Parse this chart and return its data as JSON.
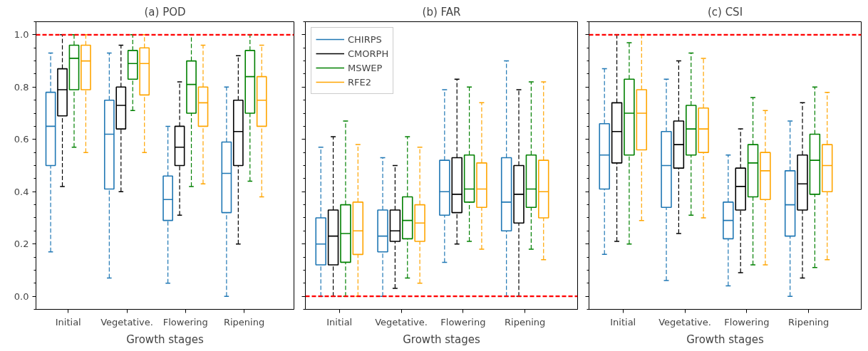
{
  "chart_data": [
    {
      "type": "box",
      "title": "(a) POD",
      "xlabel": "Growth stages",
      "categories": [
        "Initial",
        "Vegetative.",
        "Flowering",
        "Ripening"
      ],
      "ylim": [
        -0.05,
        1.05
      ],
      "yticks": [
        {
          "value": 0,
          "label": "0.0"
        },
        {
          "value": 0.2,
          "label": "0.2"
        },
        {
          "value": 0.4,
          "label": "0.4"
        },
        {
          "value": 0.6,
          "label": "0.6"
        },
        {
          "value": 0.8,
          "label": "0.8"
        },
        {
          "value": 1,
          "label": "1.0"
        }
      ],
      "grid": false,
      "line_style": "dashed",
      "ref_lines": [
        {
          "axis": "y",
          "value": 1,
          "color": "#ff0000",
          "line_style": "dashed"
        }
      ],
      "series": [
        {
          "color": "#1f77b4",
          "boxes": [
            {
              "low": 0.17,
              "q1": 0.5,
              "median": 0.65,
              "q3": 0.78,
              "high": 0.93
            },
            {
              "low": 0.07,
              "q1": 0.41,
              "median": 0.62,
              "q3": 0.75,
              "high": 0.93
            },
            {
              "low": 0.05,
              "q1": 0.29,
              "median": 0.37,
              "q3": 0.46,
              "high": 0.65
            },
            {
              "low": 0.0,
              "q1": 0.32,
              "median": 0.47,
              "q3": 0.59,
              "high": 0.8
            }
          ]
        },
        {
          "color": "#000000",
          "boxes": [
            {
              "low": 0.42,
              "q1": 0.69,
              "median": 0.79,
              "q3": 0.87,
              "high": 1.0
            },
            {
              "low": 0.4,
              "q1": 0.64,
              "median": 0.73,
              "q3": 0.8,
              "high": 0.96
            },
            {
              "low": 0.31,
              "q1": 0.5,
              "median": 0.57,
              "q3": 0.65,
              "high": 0.82
            },
            {
              "low": 0.2,
              "q1": 0.5,
              "median": 0.63,
              "q3": 0.75,
              "high": 0.92
            }
          ]
        },
        {
          "color": "#008000",
          "boxes": [
            {
              "low": 0.57,
              "q1": 0.79,
              "median": 0.91,
              "q3": 0.96,
              "high": 1.0
            },
            {
              "low": 0.71,
              "q1": 0.83,
              "median": 0.89,
              "q3": 0.94,
              "high": 1.0
            },
            {
              "low": 0.42,
              "q1": 0.7,
              "median": 0.81,
              "q3": 0.9,
              "high": 1.0
            },
            {
              "low": 0.44,
              "q1": 0.7,
              "median": 0.84,
              "q3": 0.94,
              "high": 1.0
            }
          ]
        },
        {
          "color": "#ffa500",
          "boxes": [
            {
              "low": 0.55,
              "q1": 0.79,
              "median": 0.9,
              "q3": 0.96,
              "high": 1.0
            },
            {
              "low": 0.55,
              "q1": 0.77,
              "median": 0.89,
              "q3": 0.95,
              "high": 1.0
            },
            {
              "low": 0.43,
              "q1": 0.65,
              "median": 0.74,
              "q3": 0.8,
              "high": 0.96
            },
            {
              "low": 0.38,
              "q1": 0.65,
              "median": 0.75,
              "q3": 0.84,
              "high": 0.96
            }
          ]
        }
      ]
    },
    {
      "type": "box",
      "title": "(b) FAR",
      "xlabel": "Growth stages",
      "categories": [
        "Initial",
        "Vegetative.",
        "Flowering",
        "Ripening"
      ],
      "ylim": [
        -0.05,
        1.05
      ],
      "yticks": [
        {
          "value": 0,
          "label": null
        },
        {
          "value": 0.2,
          "label": null
        },
        {
          "value": 0.4,
          "label": null
        },
        {
          "value": 0.6,
          "label": null
        },
        {
          "value": 0.8,
          "label": null
        },
        {
          "value": 1,
          "label": null
        }
      ],
      "tick_labels": "x",
      "grid": false,
      "line_style": "dashed",
      "legend": "top left",
      "ref_lines": [
        {
          "axis": "y",
          "value": 0,
          "color": "#ff0000",
          "line_style": "dashed"
        }
      ],
      "series": [
        {
          "name": "CHIRPS",
          "color": "#1f77b4",
          "boxes": [
            {
              "low": 0.0,
              "q1": 0.12,
              "median": 0.2,
              "q3": 0.3,
              "high": 0.57
            },
            {
              "low": 0.0,
              "q1": 0.17,
              "median": 0.23,
              "q3": 0.33,
              "high": 0.53
            },
            {
              "low": 0.13,
              "q1": 0.31,
              "median": 0.4,
              "q3": 0.52,
              "high": 0.79
            },
            {
              "low": 0.0,
              "q1": 0.25,
              "median": 0.36,
              "q3": 0.53,
              "high": 0.9
            }
          ]
        },
        {
          "name": "CMORPH",
          "color": "#000000",
          "boxes": [
            {
              "low": 0.0,
              "q1": 0.12,
              "median": 0.23,
              "q3": 0.33,
              "high": 0.61
            },
            {
              "low": 0.03,
              "q1": 0.21,
              "median": 0.25,
              "q3": 0.33,
              "high": 0.5
            },
            {
              "low": 0.2,
              "q1": 0.32,
              "median": 0.39,
              "q3": 0.53,
              "high": 0.83
            },
            {
              "low": 0.0,
              "q1": 0.28,
              "median": 0.39,
              "q3": 0.5,
              "high": 0.79
            }
          ]
        },
        {
          "name": "MSWEP",
          "color": "#008000",
          "boxes": [
            {
              "low": 0.0,
              "q1": 0.13,
              "median": 0.24,
              "q3": 0.35,
              "high": 0.67
            },
            {
              "low": 0.07,
              "q1": 0.22,
              "median": 0.29,
              "q3": 0.38,
              "high": 0.61
            },
            {
              "low": 0.21,
              "q1": 0.36,
              "median": 0.41,
              "q3": 0.54,
              "high": 0.8
            },
            {
              "low": 0.18,
              "q1": 0.34,
              "median": 0.41,
              "q3": 0.54,
              "high": 0.82
            }
          ]
        },
        {
          "name": "RFE2",
          "color": "#ffa500",
          "boxes": [
            {
              "low": 0.0,
              "q1": 0.16,
              "median": 0.25,
              "q3": 0.36,
              "high": 0.58
            },
            {
              "low": 0.05,
              "q1": 0.21,
              "median": 0.28,
              "q3": 0.35,
              "high": 0.57
            },
            {
              "low": 0.18,
              "q1": 0.34,
              "median": 0.41,
              "q3": 0.51,
              "high": 0.74
            },
            {
              "low": 0.14,
              "q1": 0.3,
              "median": 0.4,
              "q3": 0.52,
              "high": 0.82
            }
          ]
        }
      ]
    },
    {
      "type": "box",
      "title": "(c) CSI",
      "xlabel": "Growth stages",
      "categories": [
        "Initial",
        "Vegetative.",
        "Flowering",
        "Ripening"
      ],
      "ylim": [
        -0.05,
        1.05
      ],
      "yticks": [
        {
          "value": 0,
          "label": null
        },
        {
          "value": 0.2,
          "label": null
        },
        {
          "value": 0.4,
          "label": null
        },
        {
          "value": 0.6,
          "label": null
        },
        {
          "value": 0.8,
          "label": null
        },
        {
          "value": 1,
          "label": null
        }
      ],
      "tick_labels": "x",
      "grid": false,
      "line_style": "dashed",
      "ref_lines": [
        {
          "axis": "y",
          "value": 1,
          "color": "#ff0000",
          "line_style": "dashed"
        }
      ],
      "series": [
        {
          "color": "#1f77b4",
          "boxes": [
            {
              "low": 0.16,
              "q1": 0.41,
              "median": 0.54,
              "q3": 0.66,
              "high": 0.87
            },
            {
              "low": 0.06,
              "q1": 0.34,
              "median": 0.5,
              "q3": 0.63,
              "high": 0.83
            },
            {
              "low": 0.04,
              "q1": 0.22,
              "median": 0.29,
              "q3": 0.36,
              "high": 0.54
            },
            {
              "low": 0.0,
              "q1": 0.23,
              "median": 0.35,
              "q3": 0.48,
              "high": 0.67
            }
          ]
        },
        {
          "color": "#000000",
          "boxes": [
            {
              "low": 0.21,
              "q1": 0.51,
              "median": 0.63,
              "q3": 0.74,
              "high": 1.0
            },
            {
              "low": 0.24,
              "q1": 0.49,
              "median": 0.58,
              "q3": 0.67,
              "high": 0.9
            },
            {
              "low": 0.09,
              "q1": 0.33,
              "median": 0.42,
              "q3": 0.49,
              "high": 0.64
            },
            {
              "low": 0.07,
              "q1": 0.33,
              "median": 0.43,
              "q3": 0.54,
              "high": 0.74
            }
          ]
        },
        {
          "color": "#008000",
          "boxes": [
            {
              "low": 0.2,
              "q1": 0.54,
              "median": 0.7,
              "q3": 0.83,
              "high": 0.97
            },
            {
              "low": 0.31,
              "q1": 0.54,
              "median": 0.64,
              "q3": 0.73,
              "high": 0.93
            },
            {
              "low": 0.12,
              "q1": 0.38,
              "median": 0.51,
              "q3": 0.58,
              "high": 0.76
            },
            {
              "low": 0.11,
              "q1": 0.39,
              "median": 0.52,
              "q3": 0.62,
              "high": 0.8
            }
          ]
        },
        {
          "color": "#ffa500",
          "boxes": [
            {
              "low": 0.29,
              "q1": 0.56,
              "median": 0.7,
              "q3": 0.79,
              "high": 1.0
            },
            {
              "low": 0.3,
              "q1": 0.55,
              "median": 0.64,
              "q3": 0.72,
              "high": 0.91
            },
            {
              "low": 0.12,
              "q1": 0.37,
              "median": 0.48,
              "q3": 0.55,
              "high": 0.71
            },
            {
              "low": 0.14,
              "q1": 0.4,
              "median": 0.5,
              "q3": 0.58,
              "high": 0.78
            }
          ]
        }
      ]
    }
  ]
}
